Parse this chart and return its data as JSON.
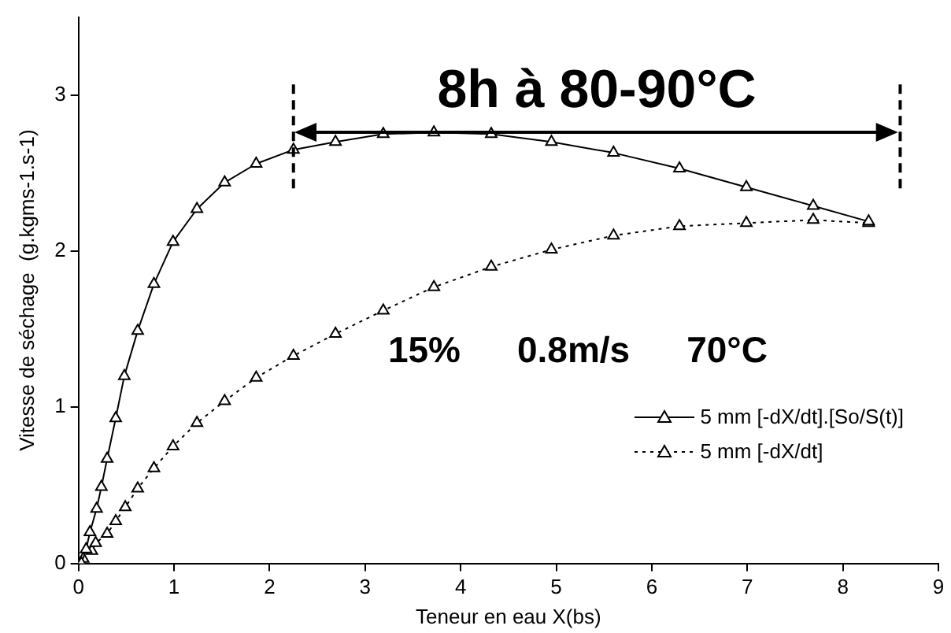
{
  "chart_data": {
    "type": "line",
    "xlabel": "Teneur en eau X(bs)",
    "ylabel": "Vitesse de séchage  (g.kgms-1.s-1)",
    "xlim": [
      0,
      9
    ],
    "xticks": [
      0,
      1,
      2,
      3,
      4,
      5,
      6,
      7,
      8,
      9
    ],
    "ylim": [
      0,
      3.5
    ],
    "yticks": [
      0,
      1,
      2,
      3
    ],
    "grid": false,
    "legend": "bottom right",
    "marker": "triangle",
    "series": [
      {
        "name": "5 mm [-dX/dt].[So/S(t)]",
        "color": "#000000",
        "line_style": "solid",
        "x": [
          0.03,
          0.08,
          0.12,
          0.19,
          0.24,
          0.3,
          0.39,
          0.48,
          0.62,
          0.79,
          0.99,
          1.24,
          1.53,
          1.86,
          2.25,
          2.69,
          3.19,
          3.72,
          4.32,
          4.95,
          5.6,
          6.29,
          6.99,
          7.69,
          8.27
        ],
        "values": [
          0,
          0.09,
          0.2,
          0.35,
          0.49,
          0.67,
          0.93,
          1.2,
          1.49,
          1.79,
          2.06,
          2.27,
          2.44,
          2.56,
          2.65,
          2.7,
          2.75,
          2.76,
          2.75,
          2.7,
          2.63,
          2.53,
          2.41,
          2.29,
          2.19
        ]
      },
      {
        "name": "5 mm [-dX/dt]",
        "color": "#000000",
        "line_style": "dotted",
        "x": [
          0.05,
          0.14,
          0.18,
          0.3,
          0.39,
          0.49,
          0.62,
          0.79,
          0.99,
          1.24,
          1.53,
          1.86,
          2.25,
          2.69,
          3.19,
          3.72,
          4.32,
          4.95,
          5.6,
          6.29,
          6.99,
          7.69,
          8.27
        ],
        "values": [
          0.03,
          0.08,
          0.13,
          0.19,
          0.27,
          0.36,
          0.48,
          0.61,
          0.75,
          0.9,
          1.04,
          1.19,
          1.33,
          1.47,
          1.62,
          1.77,
          1.9,
          2.01,
          2.1,
          2.16,
          2.18,
          2.2,
          2.18
        ]
      }
    ],
    "ref_lines": [
      {
        "axis": "x",
        "value": 2.25,
        "line_style": "dashed"
      },
      {
        "axis": "x",
        "value": 8.6,
        "line_style": "dashed"
      }
    ],
    "annotations": [
      "8h à 80-90°C",
      "15%",
      "0.8m/s",
      "70°C"
    ]
  }
}
